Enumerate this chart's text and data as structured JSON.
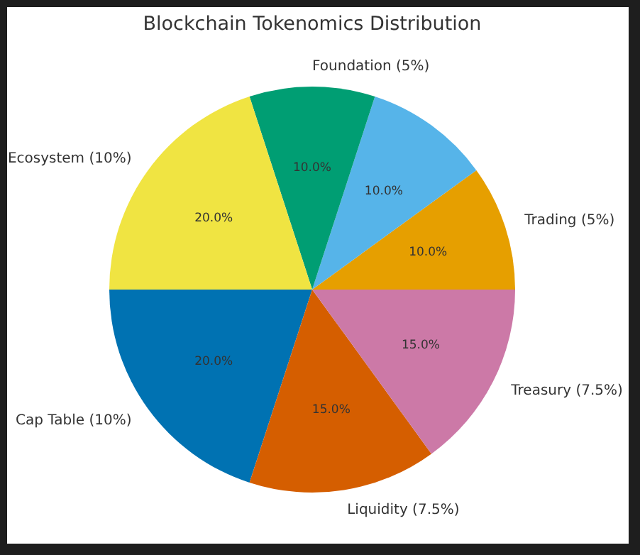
{
  "chart_data": {
    "type": "pie",
    "title": "Blockchain Tokenomics Distribution",
    "categories": [
      "Trading (5%)",
      null,
      "Foundation (5%)",
      "Ecosystem (10%)",
      "Cap Table (10%)",
      "Liquidity (7.5%)",
      "Treasury (7.5%)"
    ],
    "values": [
      10,
      10,
      10,
      20,
      20,
      15,
      15
    ],
    "colors": [
      "#e69f00",
      "#56b4e9",
      "#009e73",
      "#f0e442",
      "#0072b2",
      "#d55e00",
      "#cc79a7"
    ],
    "value_labels": [
      "10.0%",
      "10.0%",
      "10.0%",
      "20.0%",
      "20.0%",
      "15.0%",
      "15.0%"
    ]
  }
}
